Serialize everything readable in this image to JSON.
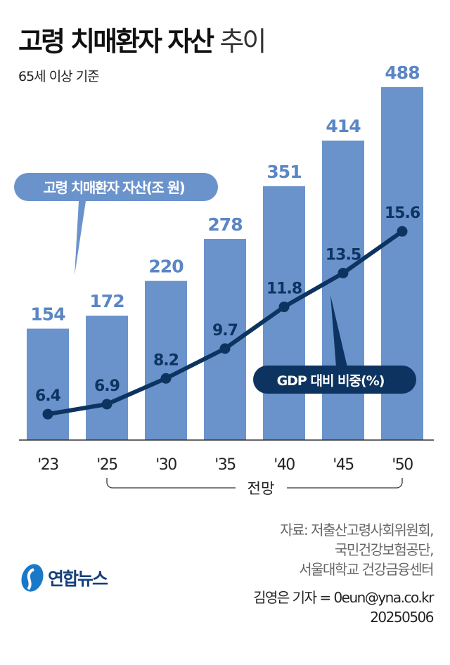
{
  "header": {
    "title_bold": "고령 치매환자 자산",
    "title_light": "추이",
    "subtitle": "65세 이상 기준"
  },
  "chart_data": {
    "type": "bar+line",
    "categories": [
      "'23",
      "'25",
      "'30",
      "'35",
      "'40",
      "'45",
      "'50"
    ],
    "series": [
      {
        "name": "고령 치매환자 자산(조 원)",
        "type": "bar",
        "values": [
          154,
          172,
          220,
          278,
          351,
          414,
          488
        ],
        "color": "#6a93cc",
        "label_color": "#5a86c4"
      },
      {
        "name": "GDP 대비 비중(%)",
        "type": "line",
        "values": [
          6.4,
          6.9,
          8.2,
          9.7,
          11.8,
          13.5,
          15.6
        ],
        "color": "#0d3461"
      }
    ],
    "value_labels": {
      "bar": [
        "154",
        "172",
        "220",
        "278",
        "351",
        "414",
        "488"
      ],
      "line": [
        "6.4",
        "6.9",
        "8.2",
        "9.7",
        "11.8",
        "13.5",
        "15.6"
      ]
    },
    "annotation": "전망",
    "grid": false
  },
  "footer": {
    "source_lines": [
      "자료: 저출산고령사회위원회,",
      "국민건강보험공단,",
      "서울대학교 건강금융센터"
    ],
    "credit": "김영은 기자 = 0eun@yna.co.kr",
    "date": "20250506",
    "logo": "연합뉴스"
  }
}
